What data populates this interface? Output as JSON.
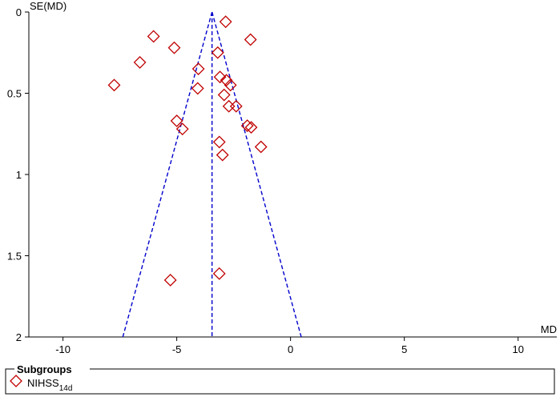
{
  "chart_data": {
    "type": "scatter",
    "x_label": "MD",
    "y_label": "SE(MD)",
    "xlim": [
      -11.5,
      11.7
    ],
    "xticks": [
      -10,
      -5,
      0,
      5,
      10
    ],
    "ylim": [
      0,
      2
    ],
    "yticks": [
      0,
      0.5,
      1,
      1.5,
      2
    ],
    "y_inverted": true,
    "series": [
      {
        "name": "NIHSS",
        "name_subscript": "14d",
        "color": "#c00000",
        "marker": "diamond",
        "x": [
          -2.85,
          -6.02,
          -1.76,
          -5.11,
          -3.2,
          -6.62,
          -4.05,
          -7.75,
          -3.1,
          -2.82,
          -2.64,
          -4.08,
          -2.92,
          -2.39,
          -2.71,
          -5.0,
          -4.75,
          -1.9,
          -1.73,
          -3.13,
          -1.3,
          -2.99,
          -5.28,
          -3.13
        ],
        "values": [
          0.06,
          0.15,
          0.17,
          0.22,
          0.25,
          0.31,
          0.35,
          0.45,
          0.4,
          0.42,
          0.45,
          0.47,
          0.51,
          0.58,
          0.58,
          0.67,
          0.72,
          0.7,
          0.71,
          0.8,
          0.83,
          0.88,
          1.65,
          1.61
        ]
      }
    ],
    "reference_lines": [
      {
        "x": [
          -3.45,
          -7.37
        ],
        "y": [
          0,
          2
        ]
      },
      {
        "x": [
          -3.45,
          0.47
        ],
        "y": [
          0,
          2
        ]
      },
      {
        "x": [
          -3.45,
          -3.45
        ],
        "y": [
          0,
          2
        ]
      }
    ],
    "reference_color": "#0000cc",
    "reference_dashed": true,
    "legend_title": "Subgroups",
    "legend": "bottom"
  }
}
